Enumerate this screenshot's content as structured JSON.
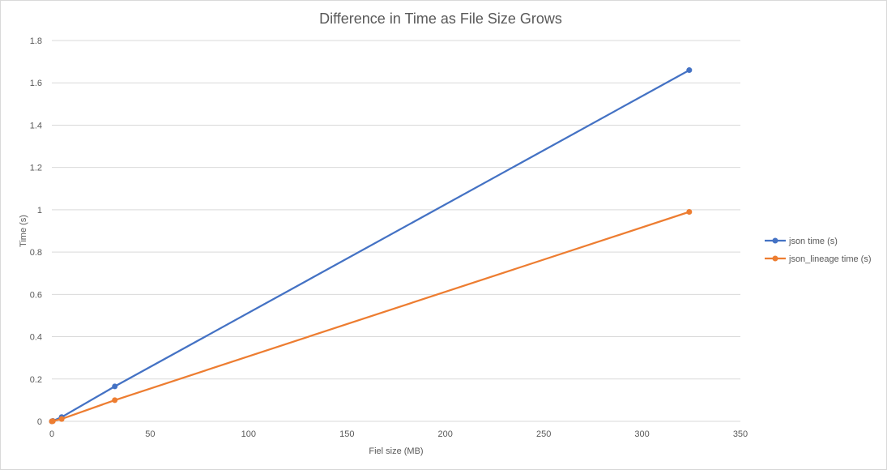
{
  "chart_data": {
    "type": "line",
    "title": "Difference in Time as File Size Grows",
    "xlabel": "Fiel size (MB)",
    "ylabel": "Time (s)",
    "xlim": [
      0,
      350
    ],
    "ylim": [
      0,
      1.8
    ],
    "x_ticks": [
      0,
      50,
      100,
      150,
      200,
      250,
      300,
      350
    ],
    "y_ticks": [
      0,
      0.2,
      0.4,
      0.6,
      0.8,
      1,
      1.2,
      1.4,
      1.6,
      1.8
    ],
    "grid": "horizontal",
    "legend_position": "right",
    "series": [
      {
        "name": "json time (s)",
        "color": "#4472c4",
        "points": [
          [
            0,
            0.0
          ],
          [
            0.5,
            0.002
          ],
          [
            5,
            0.02
          ],
          [
            32,
            0.165
          ],
          [
            324,
            1.66
          ]
        ]
      },
      {
        "name": "json_lineage time (s)",
        "color": "#ed7d31",
        "points": [
          [
            0,
            0.0
          ],
          [
            0.5,
            0.001
          ],
          [
            5,
            0.011
          ],
          [
            32,
            0.1
          ],
          [
            324,
            0.99
          ]
        ]
      }
    ]
  }
}
